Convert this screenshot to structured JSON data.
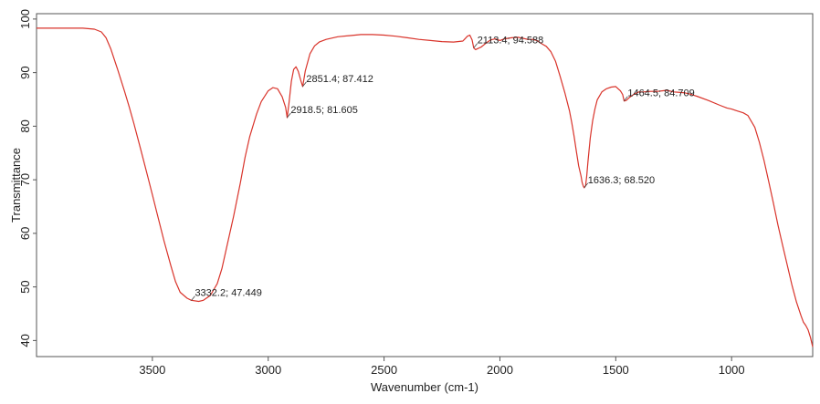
{
  "chart_data": {
    "type": "line",
    "title": "",
    "xlabel": "Wavenumber (cm-1)",
    "ylabel": "Transmittance",
    "xlim": [
      4000,
      650
    ],
    "ylim": [
      37,
      101
    ],
    "x_reversed": true,
    "x_ticks": [
      3500,
      3000,
      2500,
      2000,
      1500,
      1000
    ],
    "y_ticks": [
      40,
      50,
      60,
      70,
      80,
      90,
      100
    ],
    "grid": false,
    "legend": "none",
    "series": [
      {
        "color": "#d9342b",
        "x": [
          4000,
          3900,
          3800,
          3750,
          3720,
          3700,
          3680,
          3650,
          3620,
          3600,
          3580,
          3550,
          3520,
          3500,
          3480,
          3450,
          3420,
          3400,
          3380,
          3350,
          3332,
          3300,
          3280,
          3250,
          3220,
          3200,
          3180,
          3150,
          3120,
          3100,
          3080,
          3050,
          3030,
          3000,
          2980,
          2960,
          2940,
          2925,
          2918,
          2910,
          2900,
          2890,
          2880,
          2870,
          2860,
          2851,
          2840,
          2820,
          2800,
          2780,
          2750,
          2700,
          2650,
          2600,
          2550,
          2500,
          2450,
          2400,
          2350,
          2300,
          2250,
          2200,
          2160,
          2140,
          2130,
          2120,
          2113,
          2105,
          2095,
          2080,
          2060,
          2040,
          2020,
          2000,
          1980,
          1950,
          1920,
          1900,
          1880,
          1860,
          1840,
          1820,
          1800,
          1780,
          1760,
          1740,
          1720,
          1700,
          1690,
          1680,
          1670,
          1660,
          1650,
          1645,
          1640,
          1636,
          1630,
          1625,
          1620,
          1610,
          1600,
          1590,
          1580,
          1560,
          1540,
          1520,
          1500,
          1490,
          1480,
          1470,
          1464,
          1455,
          1440,
          1420,
          1400,
          1380,
          1350,
          1320,
          1300,
          1280,
          1250,
          1220,
          1200,
          1180,
          1150,
          1100,
          1050,
          1020,
          1000,
          980,
          950,
          930,
          900,
          880,
          860,
          840,
          820,
          800,
          780,
          760,
          740,
          720,
          700,
          690,
          680,
          670,
          660,
          650
        ],
        "y": [
          98.3,
          98.3,
          98.3,
          98.1,
          97.6,
          96.5,
          94.5,
          90.6,
          86.5,
          83.6,
          80.5,
          75.6,
          70.6,
          67.2,
          63.8,
          58.6,
          53.9,
          51.0,
          49.0,
          47.9,
          47.5,
          47.3,
          47.5,
          48.4,
          50.6,
          53.4,
          57.3,
          63.1,
          69.5,
          74.2,
          78.0,
          82.3,
          84.6,
          86.6,
          87.2,
          87.0,
          85.5,
          83.5,
          81.6,
          84.5,
          88.4,
          90.6,
          91.1,
          90.2,
          88.6,
          87.4,
          90.3,
          93.5,
          95.0,
          95.7,
          96.2,
          96.7,
          96.9,
          97.1,
          97.1,
          97.0,
          96.8,
          96.5,
          96.2,
          96.0,
          95.8,
          95.7,
          95.9,
          96.8,
          97.0,
          96.1,
          94.6,
          94.3,
          94.5,
          94.8,
          95.5,
          96.1,
          96.3,
          96.0,
          96.3,
          96.5,
          96.6,
          96.4,
          96.2,
          96.2,
          96.0,
          95.4,
          94.9,
          93.9,
          92.1,
          89.3,
          86.3,
          82.9,
          80.7,
          78.1,
          75.3,
          72.6,
          70.7,
          69.5,
          68.8,
          68.5,
          68.9,
          70.8,
          73.4,
          77.8,
          81.0,
          83.2,
          84.9,
          86.4,
          87.0,
          87.3,
          87.4,
          87.0,
          86.6,
          85.9,
          84.7,
          84.8,
          85.4,
          86.0,
          86.4,
          86.4,
          86.5,
          86.5,
          86.6,
          86.7,
          86.4,
          86.3,
          86.2,
          86.0,
          85.6,
          84.8,
          83.9,
          83.4,
          83.2,
          82.9,
          82.5,
          82.0,
          79.8,
          77.0,
          73.6,
          69.7,
          65.7,
          61.6,
          57.8,
          54.1,
          50.4,
          47.2,
          44.6,
          43.4,
          42.8,
          42.0,
          40.6,
          38.8
        ]
      }
    ],
    "annotations": [
      {
        "x": 3332.2,
        "y": 47.449,
        "text": "3332.2; 47.449"
      },
      {
        "x": 2918.5,
        "y": 81.605,
        "text": "2918.5; 81.605"
      },
      {
        "x": 2851.4,
        "y": 87.412,
        "text": "2851.4; 87.412"
      },
      {
        "x": 2113.4,
        "y": 94.588,
        "text": "2113.4; 94.588"
      },
      {
        "x": 1636.3,
        "y": 68.52,
        "text": "1636.3; 68.520"
      },
      {
        "x": 1464.5,
        "y": 84.709,
        "text": "1464.5; 84.709"
      }
    ]
  }
}
